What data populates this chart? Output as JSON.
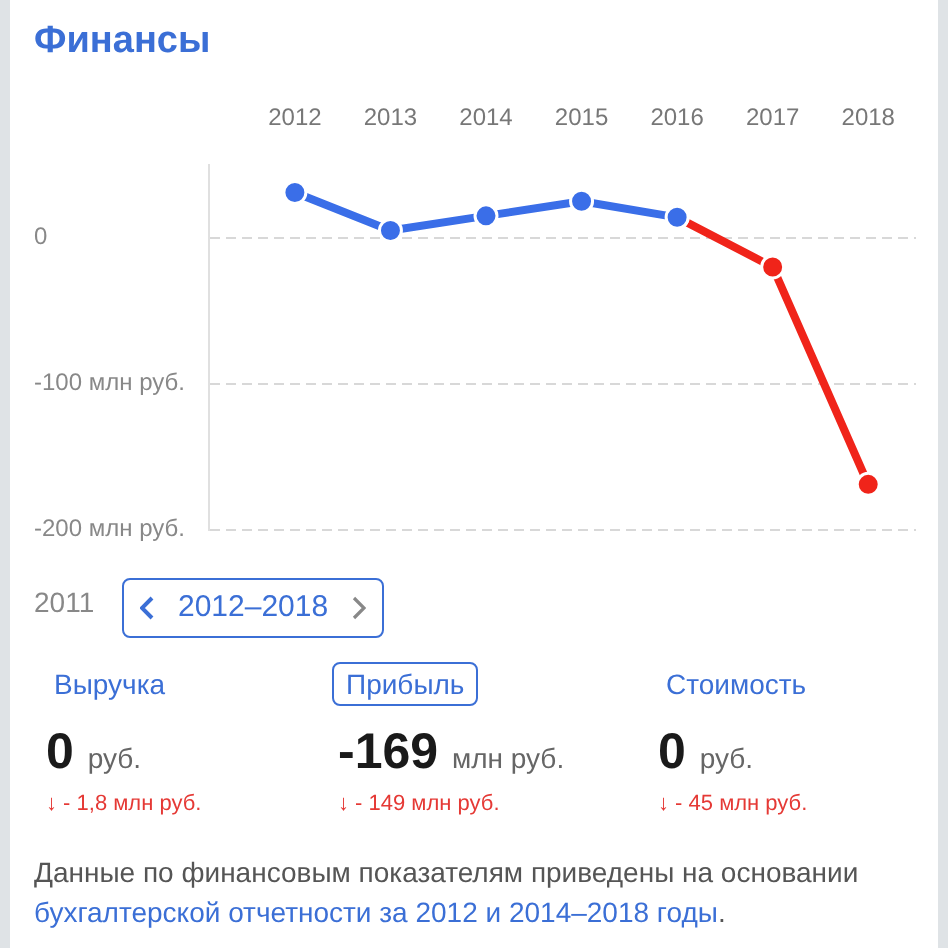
{
  "chart_data": [
    {
      "type": "line",
      "title": "Финансы",
      "x": [
        2012,
        2013,
        2014,
        2015,
        2016,
        2017,
        2018
      ],
      "series": [
        {
          "color": "#3a6ee8",
          "values": [
            31,
            5,
            15,
            25,
            14,
            null,
            null
          ]
        },
        {
          "color": "#f0241a",
          "values": [
            null,
            null,
            null,
            null,
            14,
            -20,
            -169
          ]
        }
      ],
      "xlim": [
        2011.1,
        2018.5
      ],
      "xticks": [
        2012,
        2013,
        2014,
        2015,
        2016,
        2017,
        2018
      ],
      "ylim": [
        -200,
        50
      ],
      "yticks": [
        {
          "value": 0,
          "label": "0"
        },
        {
          "value": -100,
          "label": "-100 млн руб."
        },
        {
          "value": -200,
          "label": "-200 млн руб."
        }
      ],
      "grid": "y",
      "legend": false,
      "marker": "circle",
      "line_style": "solid"
    },
    {
      "type": "other",
      "annotations": [
        "2011",
        "2012–2018",
        "Выручка",
        "Прибыль",
        "Стоимость",
        "0 руб.",
        "-169 млн руб.",
        "0 руб.",
        "↓ - 1,8 млн руб.",
        "↓ - 149 млн руб.",
        "↓ - 45 млн руб.",
        "Данные по финансовым показателям приведены на основании ",
        "бухгалтерской отчетности за 2012 и 2014–2018 годы",
        "."
      ]
    }
  ]
}
